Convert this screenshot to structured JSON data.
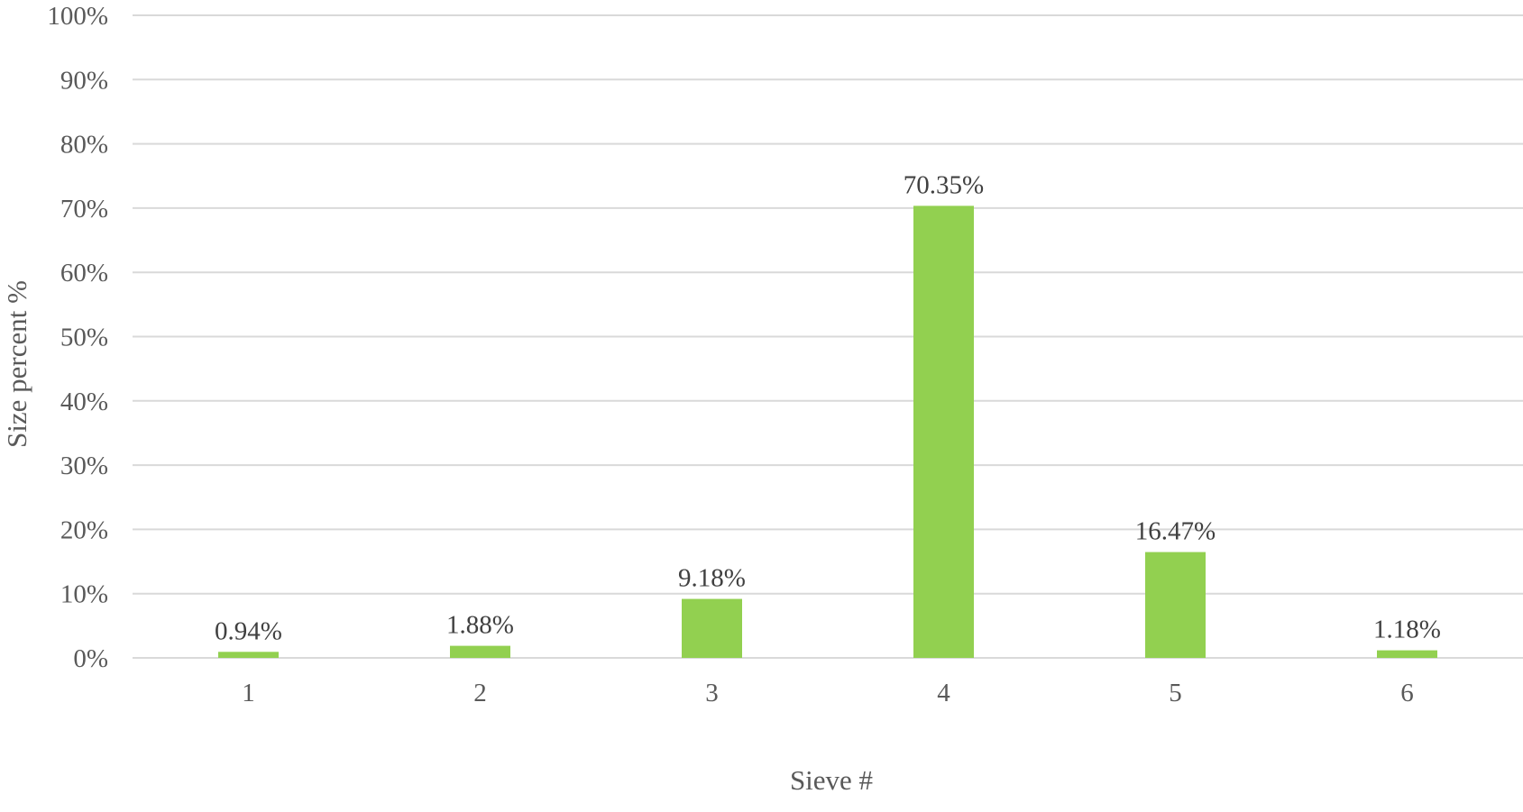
{
  "chart_data": {
    "type": "bar",
    "title": "",
    "xlabel": "Sieve #",
    "ylabel": "Size percent %",
    "categories": [
      "1",
      "2",
      "3",
      "4",
      "5",
      "6"
    ],
    "values": [
      0.94,
      1.88,
      9.18,
      70.35,
      16.47,
      1.18
    ],
    "data_labels": [
      "0.94%",
      "1.88%",
      "9.18%",
      "70.35%",
      "16.47%",
      "1.18%"
    ],
    "ylim": [
      0,
      100
    ],
    "yticks": [
      0,
      10,
      20,
      30,
      40,
      50,
      60,
      70,
      80,
      90,
      100
    ],
    "ytick_labels": [
      "0%",
      "10%",
      "20%",
      "30%",
      "40%",
      "50%",
      "60%",
      "70%",
      "80%",
      "90%",
      "100%"
    ],
    "grid": true,
    "legend": "none",
    "bar_color": "#92d050",
    "grid_color": "#d9d9d9"
  }
}
